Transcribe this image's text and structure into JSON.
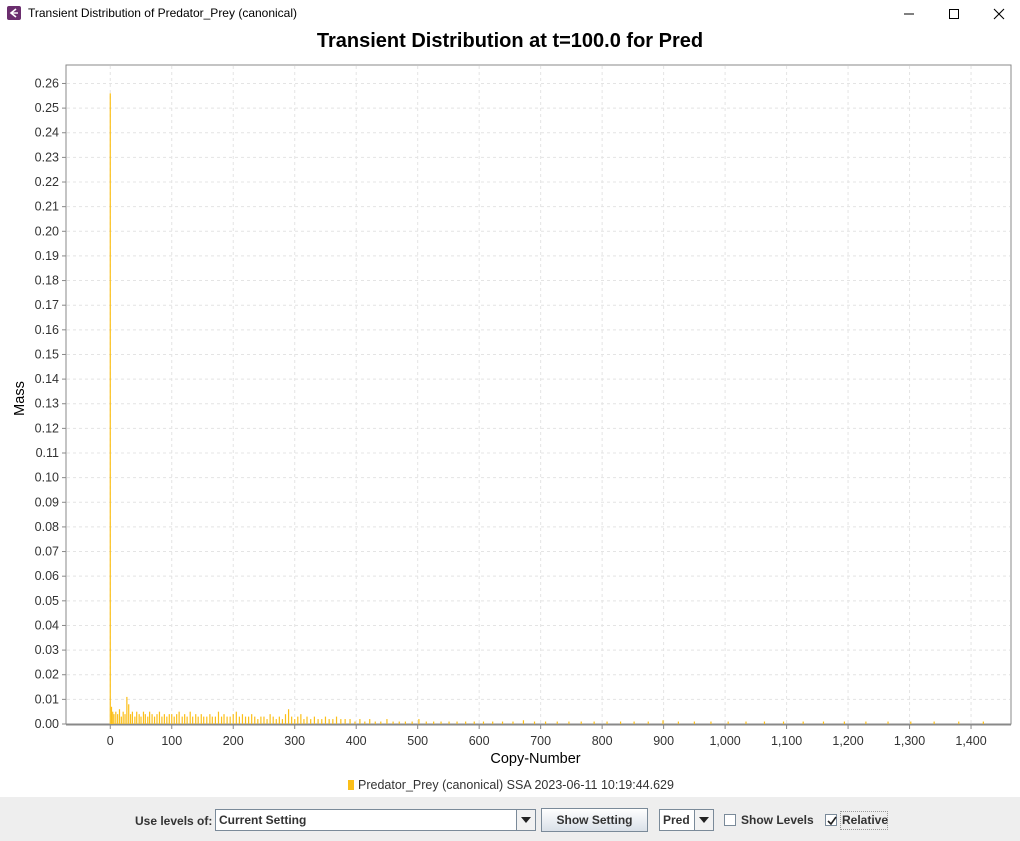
{
  "window": {
    "title": "Transient Distribution of Predator_Prey (canonical)",
    "icon": "app-icon",
    "controls": [
      "minimize-icon",
      "maximize-icon",
      "close-icon"
    ]
  },
  "chart_title": "Transient Distribution at t=100.0 for Pred",
  "chart_data": {
    "type": "bar",
    "title": "Transient Distribution at t=100.0 for Pred",
    "xlabel": "Copy-Number",
    "ylabel": "Mass",
    "xlim": [
      -72,
      1465
    ],
    "ylim": [
      0,
      0.2675
    ],
    "x_ticks": [
      0,
      100,
      200,
      300,
      400,
      500,
      600,
      700,
      800,
      900,
      1000,
      1100,
      1200,
      1300,
      1400
    ],
    "x_tick_labels": [
      "0",
      "100",
      "200",
      "300",
      "400",
      "500",
      "600",
      "700",
      "800",
      "900",
      "1,000",
      "1,100",
      "1,200",
      "1,300",
      "1,400"
    ],
    "y_ticks": [
      0,
      0.01,
      0.02,
      0.03,
      0.04,
      0.05,
      0.06,
      0.07,
      0.08,
      0.09,
      0.1,
      0.11,
      0.12,
      0.13,
      0.14,
      0.15,
      0.16,
      0.17,
      0.18,
      0.19,
      0.2,
      0.21,
      0.22,
      0.23,
      0.24,
      0.25,
      0.26
    ],
    "y_tick_labels": [
      "0.00",
      "0.01",
      "0.02",
      "0.03",
      "0.04",
      "0.05",
      "0.06",
      "0.07",
      "0.08",
      "0.09",
      "0.10",
      "0.11",
      "0.12",
      "0.13",
      "0.14",
      "0.15",
      "0.16",
      "0.17",
      "0.18",
      "0.19",
      "0.20",
      "0.21",
      "0.22",
      "0.23",
      "0.24",
      "0.25",
      "0.26"
    ],
    "grid": true,
    "legend": "bottom",
    "series": [
      {
        "name": "Predator_Prey (canonical) SSA 2023-06-11 10:19:44.629",
        "color": "#fbbf19",
        "x": [
          0,
          2,
          4,
          6,
          9,
          12,
          15,
          18,
          21,
          24,
          27,
          30,
          33,
          36,
          40,
          43,
          47,
          50,
          54,
          57,
          61,
          64,
          68,
          72,
          76,
          80,
          84,
          88,
          92,
          96,
          100,
          104,
          108,
          112,
          117,
          121,
          125,
          130,
          134,
          139,
          143,
          148,
          152,
          157,
          162,
          166,
          171,
          176,
          181,
          185,
          190,
          195,
          200,
          205,
          210,
          215,
          220,
          225,
          230,
          235,
          240,
          245,
          250,
          255,
          260,
          265,
          270,
          275,
          280,
          285,
          290,
          295,
          300,
          305,
          310,
          315,
          320,
          326,
          332,
          338,
          344,
          350,
          356,
          362,
          368,
          375,
          382,
          390,
          398,
          406,
          414,
          422,
          431,
          440,
          450,
          460,
          470,
          480,
          491,
          502,
          514,
          526,
          538,
          551,
          564,
          578,
          592,
          607,
          622,
          638,
          655,
          672,
          690,
          708,
          727,
          746,
          766,
          787,
          808,
          830,
          852,
          875,
          899,
          924,
          950,
          977,
          1005,
          1034,
          1064,
          1095,
          1127,
          1160,
          1194,
          1229,
          1265,
          1302,
          1340,
          1380,
          1420
        ],
        "values": [
          0.256,
          0.007,
          0.005,
          0.004,
          0.005,
          0.004,
          0.006,
          0.003,
          0.005,
          0.004,
          0.011,
          0.008,
          0.004,
          0.005,
          0.003,
          0.005,
          0.004,
          0.003,
          0.005,
          0.004,
          0.003,
          0.005,
          0.004,
          0.003,
          0.004,
          0.005,
          0.003,
          0.004,
          0.003,
          0.004,
          0.004,
          0.003,
          0.004,
          0.005,
          0.003,
          0.004,
          0.003,
          0.005,
          0.003,
          0.004,
          0.003,
          0.004,
          0.003,
          0.003,
          0.004,
          0.003,
          0.003,
          0.005,
          0.003,
          0.004,
          0.003,
          0.003,
          0.004,
          0.005,
          0.003,
          0.004,
          0.003,
          0.003,
          0.004,
          0.003,
          0.002,
          0.003,
          0.003,
          0.002,
          0.004,
          0.003,
          0.002,
          0.003,
          0.002,
          0.004,
          0.006,
          0.003,
          0.002,
          0.003,
          0.004,
          0.002,
          0.003,
          0.002,
          0.003,
          0.002,
          0.002,
          0.003,
          0.002,
          0.002,
          0.003,
          0.002,
          0.002,
          0.002,
          0.001,
          0.002,
          0.001,
          0.002,
          0.001,
          0.001,
          0.002,
          0.001,
          0.001,
          0.001,
          0.001,
          0.002,
          0.001,
          0.001,
          0.001,
          0.001,
          0.001,
          0.001,
          0.001,
          0.001,
          0.001,
          0.001,
          0.001,
          0.0015,
          0.001,
          0.001,
          0.001,
          0.001,
          0.001,
          0.001,
          0.001,
          0.001,
          0.001,
          0.001,
          0.0015,
          0.001,
          0.001,
          0.001,
          0.001,
          0.001,
          0.001,
          0.001,
          0.001,
          0.001,
          0.001,
          0.001,
          0.001,
          0.001,
          0.001,
          0.001,
          0.001
        ]
      }
    ]
  },
  "legend": {
    "label": "Predator_Prey (canonical) SSA 2023-06-11 10:19:44.629"
  },
  "controls": {
    "use_levels_label": "Use levels of:",
    "levels_value": "Current Setting",
    "show_setting_button": "Show Setting",
    "species_value": "Pred",
    "show_levels_label": "Show Levels",
    "show_levels_checked": false,
    "relative_label": "Relative",
    "relative_checked": true
  }
}
